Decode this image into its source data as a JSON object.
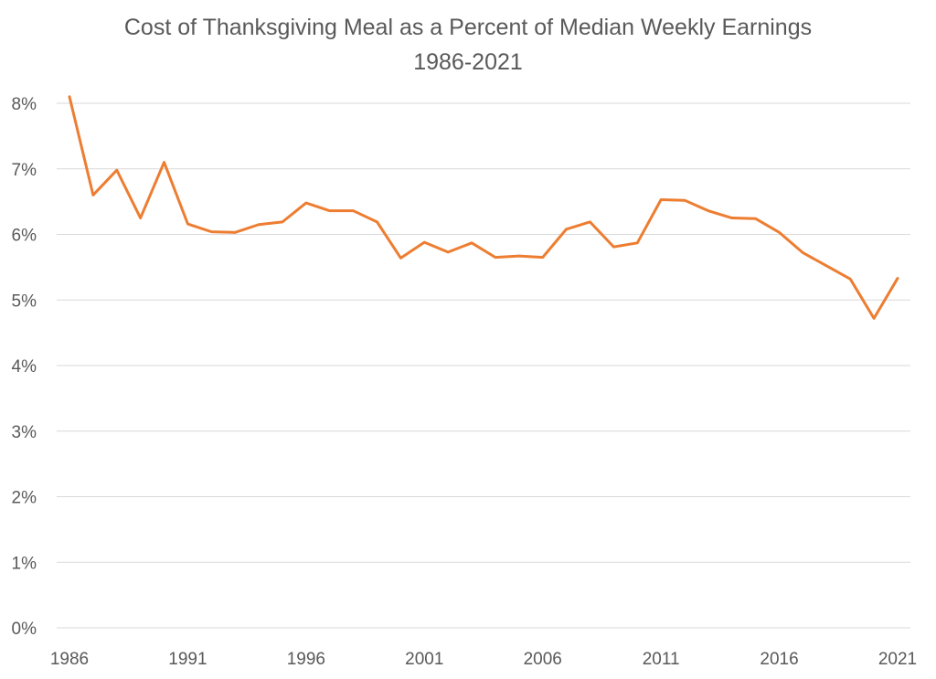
{
  "chart_data": {
    "type": "line",
    "title": "Cost of Thanksgiving Meal as a Percent of Median Weekly Earnings",
    "subtitle": "1986-2021",
    "xlabel": "",
    "ylabel": "",
    "ylim": [
      0,
      8
    ],
    "xlim": [
      1986,
      2021
    ],
    "grid": true,
    "legend": "none",
    "y_ticks": [
      "0%",
      "1%",
      "2%",
      "3%",
      "4%",
      "5%",
      "6%",
      "7%",
      "8%"
    ],
    "x_ticks": [
      "1986",
      "1991",
      "1996",
      "2001",
      "2006",
      "2011",
      "2016",
      "2021"
    ],
    "color": "#ED7D31",
    "series": [
      {
        "name": "Percent of Median Weekly Earnings",
        "x": [
          1986,
          1987,
          1988,
          1989,
          1990,
          1991,
          1992,
          1993,
          1994,
          1995,
          1996,
          1997,
          1998,
          1999,
          2000,
          2001,
          2002,
          2003,
          2004,
          2005,
          2006,
          2007,
          2008,
          2009,
          2010,
          2011,
          2012,
          2013,
          2014,
          2015,
          2016,
          2017,
          2018,
          2019,
          2020,
          2021
        ],
        "values": [
          8.1,
          6.6,
          6.98,
          6.25,
          7.1,
          6.16,
          6.04,
          6.03,
          6.15,
          6.19,
          6.48,
          6.36,
          6.36,
          6.19,
          5.64,
          5.88,
          5.73,
          5.87,
          5.65,
          5.67,
          5.65,
          6.08,
          6.19,
          5.81,
          5.87,
          6.53,
          6.52,
          6.36,
          6.25,
          6.24,
          6.03,
          5.72,
          5.52,
          5.32,
          4.72,
          5.33
        ]
      }
    ]
  }
}
